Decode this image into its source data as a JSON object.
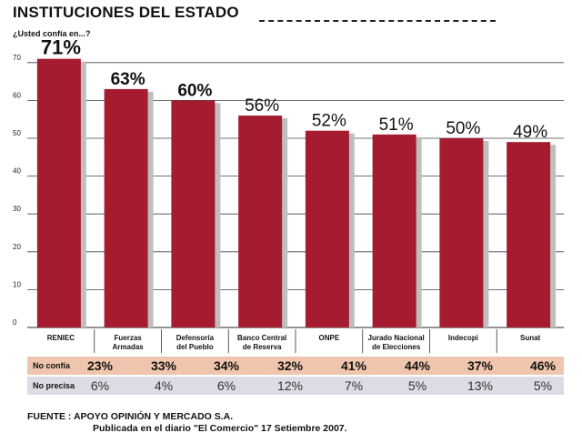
{
  "header": {
    "title": "INSTITUCIONES DEL ESTADO",
    "subtitle": "¿Usted confía en...?"
  },
  "chart_data": {
    "type": "bar",
    "categories": [
      "RENIEC",
      "Fuerzas Armadas",
      "Defensoría del Pueblo",
      "Banco Central de Reserva",
      "ONPE",
      "Jurado Nacional de Elecciones",
      "Indecopi",
      "Sunat"
    ],
    "category_lines": [
      [
        "RENIEC"
      ],
      [
        "Fuerzas",
        "Armadas"
      ],
      [
        "Defensoría",
        "del Pueblo"
      ],
      [
        "Banco Central",
        "de Reserva"
      ],
      [
        "ONPE"
      ],
      [
        "Jurado Nacional",
        "de Elecciones"
      ],
      [
        "Indecopi"
      ],
      [
        "Sunat"
      ]
    ],
    "values": [
      71,
      63,
      60,
      56,
      52,
      51,
      50,
      49
    ],
    "value_labels": [
      "71%",
      "63%",
      "60%",
      "56%",
      "52%",
      "51%",
      "50%",
      "49%"
    ],
    "yticks": [
      0,
      10,
      20,
      30,
      40,
      50,
      60,
      70
    ],
    "ylim": [
      0,
      75
    ],
    "grid": true,
    "bar_color": "#a51c30",
    "shadow_color": "#bfbfbf"
  },
  "table": {
    "rows": [
      {
        "label": "No confía",
        "values": [
          "23%",
          "33%",
          "34%",
          "32%",
          "41%",
          "44%",
          "37%",
          "46%"
        ]
      },
      {
        "label": "No precisa",
        "values": [
          "6%",
          "4%",
          "6%",
          "12%",
          "7%",
          "5%",
          "13%",
          "5%"
        ]
      }
    ]
  },
  "source": {
    "line1": "FUENTE : APOYO OPINIÓN Y MERCADO S.A.",
    "line2": "Publicada en el diario \"El Comercio\" 17 Setiembre 2007."
  }
}
